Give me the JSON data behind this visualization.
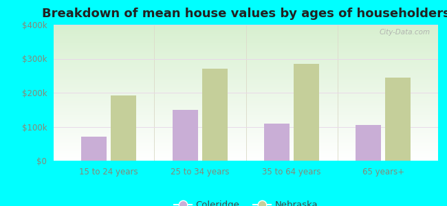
{
  "title": "Breakdown of mean house values by ages of householders",
  "categories": [
    "15 to 24 years",
    "25 to 34 years",
    "35 to 64 years",
    "65 years+"
  ],
  "coleridge_values": [
    70000,
    150000,
    110000,
    105000
  ],
  "nebraska_values": [
    192000,
    270000,
    285000,
    245000
  ],
  "coleridge_color": "#c9aed6",
  "nebraska_color": "#c5cf9a",
  "ylim": [
    0,
    400000
  ],
  "yticks": [
    0,
    100000,
    200000,
    300000,
    400000
  ],
  "ytick_labels": [
    "$0",
    "$100k",
    "$200k",
    "$300k",
    "$400k"
  ],
  "bg_color_top": "#f0fdf0",
  "bg_color_bottom": "#d8f0d0",
  "outer_background": "#00ffff",
  "title_fontsize": 13,
  "tick_color": "#888877",
  "legend_labels": [
    "Coleridge",
    "Nebraska"
  ],
  "watermark": "City-Data.com",
  "bar_width": 0.28,
  "bar_gap": 0.04
}
